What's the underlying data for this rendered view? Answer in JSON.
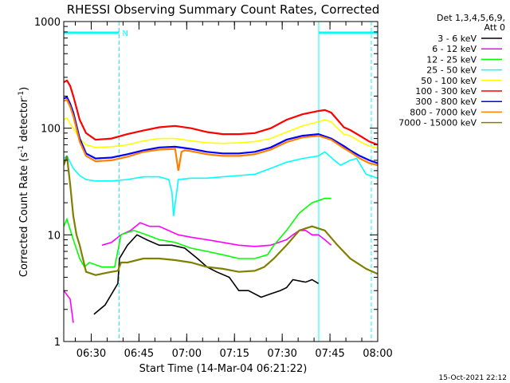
{
  "chart_data": {
    "type": "line",
    "title": "RHESSI Observing Summary Count Rates, Corrected",
    "ylabel": "Corrected Count Rate (s",
    "ylabel_sup": "-1",
    "ylabel_mid": " detector",
    "ylabel_end": ")",
    "xlabel": "Start Time (14-Mar-04 06:21:22)",
    "timestamp": "15-Oct-2021 22:12",
    "yscale": "log",
    "ylim": [
      1,
      1000
    ],
    "xlim_minutes": [
      0,
      98.63
    ],
    "x_ticks": [
      {
        "label": "06:30",
        "min": 8.63
      },
      {
        "label": "06:45",
        "min": 23.63
      },
      {
        "label": "07:00",
        "min": 38.63
      },
      {
        "label": "07:15",
        "min": 53.63
      },
      {
        "label": "07:30",
        "min": 68.63
      },
      {
        "label": "07:45",
        "min": 83.63
      },
      {
        "label": "08:00",
        "min": 98.63
      }
    ],
    "y_ticks": [
      {
        "label": "1",
        "v": 1
      },
      {
        "label": "10",
        "v": 10
      },
      {
        "label": "100",
        "v": 100
      },
      {
        "label": "1000",
        "v": 1000
      }
    ],
    "legend_header": [
      "Det 1,3,4,5,6,9,",
      "Att 0"
    ],
    "legend_placement": "right",
    "flag_label": "N",
    "night_intervals_min": [
      [
        0,
        17.4
      ],
      [
        80.1,
        98.63
      ]
    ],
    "series": [
      {
        "name": "3 - 6 keV",
        "color": "#000000",
        "x": [
          0,
          8.5,
          9.5,
          13,
          17,
          17.5,
          20,
          23,
          26,
          30,
          34,
          38,
          42,
          45,
          48,
          52,
          55,
          58,
          62,
          65,
          68,
          70,
          72,
          76,
          78,
          80,
          84
        ],
        "y": [
          null,
          null,
          1.8,
          2.2,
          3.5,
          6,
          8,
          10,
          9,
          8,
          8,
          7.5,
          6,
          5,
          4.5,
          4,
          3,
          3,
          2.6,
          2.8,
          3,
          3.2,
          3.8,
          3.6,
          3.8,
          3.5,
          null
        ]
      },
      {
        "name": "6 - 12 keV",
        "color": "#ff00ff",
        "x": [
          0,
          2,
          3,
          3.5,
          10,
          12,
          15,
          18,
          21,
          24,
          27,
          30,
          36,
          40,
          45,
          50,
          55,
          60,
          65,
          70,
          72,
          74,
          76,
          78,
          80,
          82,
          84
        ],
        "y": [
          3,
          2.5,
          1.5,
          null,
          null,
          8,
          8.5,
          10,
          11,
          13,
          12,
          12,
          10,
          9.5,
          9,
          8.5,
          8,
          7.8,
          8,
          9,
          10,
          11,
          11,
          10,
          10,
          9,
          8
        ]
      },
      {
        "name": "12 - 25 keV",
        "color": "#00ff00",
        "x": [
          0,
          1,
          3,
          5,
          6.5,
          8,
          12,
          16,
          18,
          22,
          26,
          30,
          35,
          40,
          45,
          50,
          55,
          60,
          64,
          66,
          70,
          74,
          78,
          82,
          84
        ],
        "y": [
          12,
          14,
          9,
          6,
          5,
          5.5,
          5,
          5,
          10,
          11,
          10,
          9,
          8.5,
          7.5,
          7,
          6.5,
          6,
          6,
          6.5,
          8,
          11,
          16,
          20,
          22,
          22
        ]
      },
      {
        "name": "25 - 50 keV",
        "color": "#00ffff",
        "x": [
          0,
          1,
          2,
          3,
          5,
          7,
          10,
          15,
          20,
          25,
          30,
          33,
          34,
          34.5,
          36,
          40,
          45,
          50,
          55,
          60,
          65,
          70,
          75,
          80,
          82,
          85,
          87,
          90,
          92,
          95,
          98.6
        ],
        "y": [
          52,
          55,
          48,
          42,
          36,
          33,
          32,
          32,
          33,
          35,
          35,
          33,
          25,
          15,
          33,
          34,
          34,
          35,
          36,
          37,
          42,
          48,
          52,
          55,
          60,
          50,
          45,
          50,
          52,
          37,
          34
        ]
      },
      {
        "name": "50 - 100 keV",
        "color": "#ffff00",
        "x": [
          0,
          1,
          2,
          3,
          5,
          7,
          10,
          15,
          20,
          25,
          30,
          35,
          40,
          45,
          50,
          55,
          60,
          65,
          70,
          75,
          80,
          82,
          84,
          86,
          88,
          90,
          93,
          96,
          98.6
        ],
        "y": [
          120,
          125,
          110,
          100,
          80,
          70,
          66,
          67,
          70,
          76,
          80,
          80,
          76,
          73,
          72,
          73,
          75,
          80,
          92,
          105,
          115,
          120,
          115,
          100,
          88,
          85,
          75,
          68,
          65
        ]
      },
      {
        "name": "100 - 300 keV",
        "color": "#ff0000",
        "x": [
          0,
          1,
          2,
          3,
          5,
          7,
          10,
          15,
          20,
          25,
          30,
          35,
          40,
          45,
          50,
          55,
          60,
          65,
          70,
          75,
          80,
          82,
          84,
          86,
          88,
          90,
          93,
          96,
          98.6
        ],
        "y": [
          270,
          280,
          250,
          200,
          120,
          90,
          78,
          80,
          88,
          95,
          102,
          105,
          100,
          92,
          88,
          88,
          90,
          100,
          120,
          135,
          145,
          148,
          140,
          120,
          102,
          96,
          85,
          75,
          70
        ]
      },
      {
        "name": "300 - 800 keV",
        "color": "#0000ff",
        "x": [
          0,
          1,
          2,
          3,
          5,
          7,
          10,
          15,
          20,
          25,
          30,
          35,
          40,
          45,
          50,
          55,
          60,
          65,
          70,
          75,
          80,
          84,
          88,
          90,
          93,
          96,
          98.6
        ],
        "y": [
          190,
          195,
          170,
          140,
          80,
          58,
          52,
          53,
          57,
          62,
          66,
          67,
          64,
          60,
          58,
          58,
          60,
          66,
          78,
          85,
          88,
          80,
          68,
          62,
          55,
          50,
          47
        ]
      },
      {
        "name": "800 - 7000 keV",
        "color": "#ff8000",
        "x": [
          0,
          1,
          2,
          3,
          5,
          7,
          10,
          15,
          20,
          25,
          30,
          35,
          36,
          37,
          38,
          40,
          45,
          50,
          55,
          60,
          65,
          70,
          75,
          80,
          84,
          88,
          90,
          93,
          96,
          98.6
        ],
        "y": [
          180,
          185,
          160,
          130,
          75,
          55,
          49,
          50,
          54,
          60,
          63,
          64,
          40,
          60,
          62,
          61,
          57,
          55,
          55,
          57,
          63,
          74,
          82,
          85,
          78,
          65,
          60,
          52,
          47,
          45
        ]
      },
      {
        "name": "7000 - 15000 keV",
        "color": "#808000",
        "x": [
          0,
          1,
          2,
          3,
          4,
          5,
          6,
          7,
          10,
          15,
          17,
          18,
          20,
          25,
          30,
          35,
          40,
          45,
          50,
          55,
          60,
          63,
          66,
          70,
          74,
          78,
          82,
          86,
          90,
          95,
          98.6
        ],
        "y": [
          45,
          55,
          30,
          15,
          10,
          8,
          6,
          4.5,
          4.2,
          4.5,
          4.6,
          5.5,
          5.5,
          6,
          6,
          5.8,
          5.5,
          5,
          4.8,
          4.5,
          4.6,
          5,
          6,
          8,
          11,
          12,
          11,
          8,
          6,
          4.8,
          4.3
        ]
      }
    ]
  }
}
